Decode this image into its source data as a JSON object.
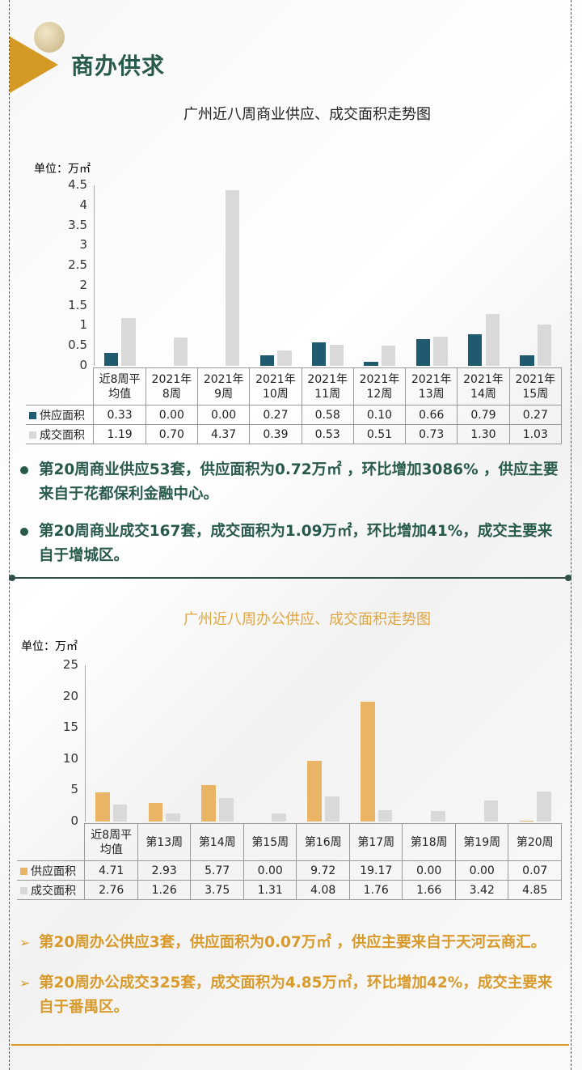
{
  "section_title": "商办供求",
  "chart_data": [
    {
      "type": "bar",
      "title": "广州近八周商业供应、成交面积走势图",
      "unit_label": "单位：万㎡",
      "categories": [
        "近8周平均值",
        "2021年8周",
        "2021年9周",
        "2021年10周",
        "2021年11周",
        "2021年12周",
        "2021年13周",
        "2021年14周",
        "2021年15周"
      ],
      "category_lines": [
        [
          "近8周平",
          "均值"
        ],
        [
          "2021年",
          "8周"
        ],
        [
          "2021年",
          "9周"
        ],
        [
          "2021年",
          "10周"
        ],
        [
          "2021年",
          "11周"
        ],
        [
          "2021年",
          "12周"
        ],
        [
          "2021年",
          "13周"
        ],
        [
          "2021年",
          "14周"
        ],
        [
          "2021年",
          "15周"
        ]
      ],
      "yticks": [
        "0",
        "0.5",
        "1",
        "1.5",
        "2",
        "2.5",
        "3",
        "3.5",
        "4",
        "4.5"
      ],
      "ylim": [
        0,
        4.5
      ],
      "series": [
        {
          "name": "供应面积",
          "color": "#1f5a6e",
          "values": [
            0.33,
            0.0,
            0.0,
            0.27,
            0.58,
            0.1,
            0.66,
            0.79,
            0.27
          ],
          "labels": [
            "0.33",
            "0.00",
            "0.00",
            "0.27",
            "0.58",
            "0.10",
            "0.66",
            "0.79",
            "0.27"
          ]
        },
        {
          "name": "成交面积",
          "color": "#d9d9d9",
          "values": [
            1.19,
            0.7,
            4.37,
            0.39,
            0.53,
            0.51,
            0.73,
            1.3,
            1.03
          ],
          "labels": [
            "1.19",
            "0.70",
            "4.37",
            "0.39",
            "0.53",
            "0.51",
            "0.73",
            "1.30",
            "1.03"
          ]
        }
      ],
      "legend": "table-bottom"
    },
    {
      "type": "bar",
      "title": "广州近八周办公供应、成交面积走势图",
      "unit_label": "单位：万㎡",
      "categories": [
        "近8周平均值",
        "第13周",
        "第14周",
        "第15周",
        "第16周",
        "第17周",
        "第18周",
        "第19周",
        "第20周"
      ],
      "category_lines": [
        [
          "近8周平",
          "均值"
        ],
        [
          "第13周"
        ],
        [
          "第14周"
        ],
        [
          "第15周"
        ],
        [
          "第16周"
        ],
        [
          "第17周"
        ],
        [
          "第18周"
        ],
        [
          "第19周"
        ],
        [
          "第20周"
        ]
      ],
      "yticks": [
        "0",
        "5",
        "10",
        "15",
        "20",
        "25"
      ],
      "ylim": [
        0,
        25
      ],
      "series": [
        {
          "name": "供应面积",
          "color": "#e9b466",
          "values": [
            4.71,
            2.93,
            5.77,
            0.0,
            9.72,
            19.17,
            0.0,
            0.0,
            0.07
          ],
          "labels": [
            "4.71",
            "2.93",
            "5.77",
            "0.00",
            "9.72",
            "19.17",
            "0.00",
            "0.00",
            "0.07"
          ]
        },
        {
          "name": "成交面积",
          "color": "#d9d9d9",
          "values": [
            2.76,
            1.26,
            3.75,
            1.31,
            4.08,
            1.76,
            1.66,
            3.42,
            4.85
          ],
          "labels": [
            "2.76",
            "1.26",
            "3.75",
            "1.31",
            "4.08",
            "1.76",
            "1.66",
            "3.42",
            "4.85"
          ]
        }
      ],
      "legend": "table-bottom"
    }
  ],
  "commercial_notes": [
    "第20周商业供应53套，供应面积为0.72万㎡ ，环比增加3086% ，供应主要来自于花都保利金融中心。",
    "第20周商业成交167套，成交面积为1.09万㎡，环比增加41%，成交主要来自于增城区。"
  ],
  "office_notes": [
    "第20周办公供应3套，供应面积为0.07万㎡ ，供应主要来自于天河云商汇。",
    "第20周办公成交325套，成交面积为4.85万㎡，环比增加42%，成交主要来自于番禺区。"
  ],
  "colors": {
    "green": "#285a4b",
    "orange": "#d99a2c"
  }
}
